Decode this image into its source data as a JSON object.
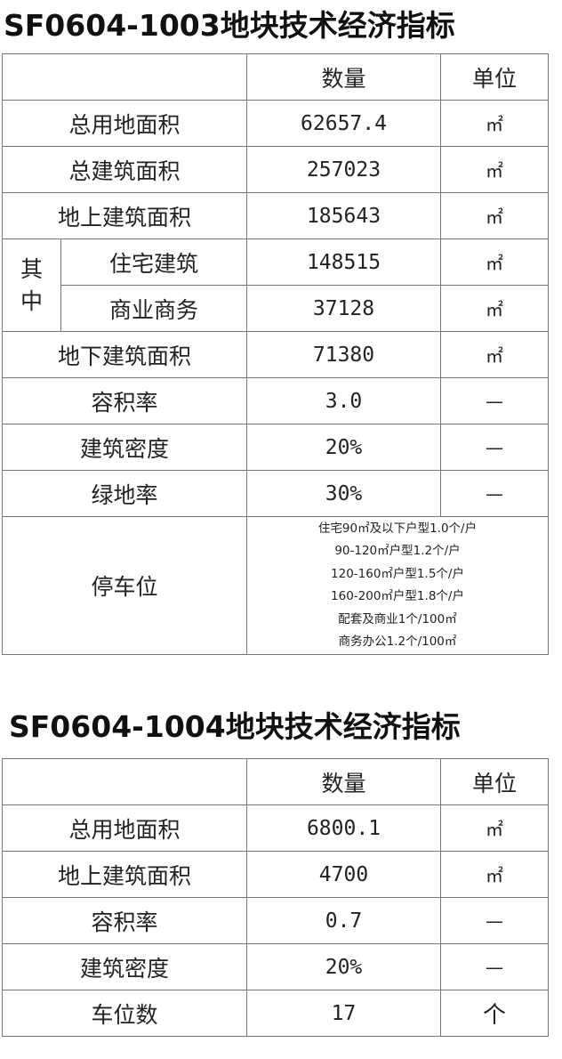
{
  "table1": {
    "title": "SF0604-1003地块技术经济指标",
    "header": {
      "qty": "数量",
      "unit": "单位"
    },
    "rows": [
      {
        "label": "总用地面积",
        "qty": "62657.4",
        "unit": "㎡"
      },
      {
        "label": "总建筑面积",
        "qty": "257023",
        "unit": "㎡"
      },
      {
        "label": "地上建筑面积",
        "qty": "185643",
        "unit": "㎡"
      }
    ],
    "group_label": "其中",
    "group_rows": [
      {
        "label": "住宅建筑",
        "qty": "148515",
        "unit": "㎡"
      },
      {
        "label": "商业商务",
        "qty": "37128",
        "unit": "㎡"
      }
    ],
    "rows2": [
      {
        "label": "地下建筑面积",
        "qty": "71380",
        "unit": "㎡"
      },
      {
        "label": "容积率",
        "qty": "3.0",
        "unit": "—"
      },
      {
        "label": "建筑密度",
        "qty": "20%",
        "unit": "—"
      },
      {
        "label": "绿地率",
        "qty": "30%",
        "unit": "—"
      }
    ],
    "parking": {
      "label": "停车位",
      "lines": [
        "住宅90㎡及以下户型1.0个/户",
        "90-120㎡户型1.2个/户",
        "120-160㎡户型1.5个/户",
        "160-200㎡户型1.8个/户",
        "配套及商业1个/100㎡",
        "商务办公1.2个/100㎡"
      ]
    }
  },
  "table2": {
    "title": "SF0604-1004地块技术经济指标",
    "header": {
      "qty": "数量",
      "unit": "单位"
    },
    "rows": [
      {
        "label": "总用地面积",
        "qty": "6800.1",
        "unit": "㎡"
      },
      {
        "label": "地上建筑面积",
        "qty": "4700",
        "unit": "㎡"
      },
      {
        "label": "容积率",
        "qty": "0.7",
        "unit": "—"
      },
      {
        "label": "建筑密度",
        "qty": "20%",
        "unit": "—"
      },
      {
        "label": "车位数",
        "qty": "17",
        "unit": "个"
      }
    ]
  }
}
